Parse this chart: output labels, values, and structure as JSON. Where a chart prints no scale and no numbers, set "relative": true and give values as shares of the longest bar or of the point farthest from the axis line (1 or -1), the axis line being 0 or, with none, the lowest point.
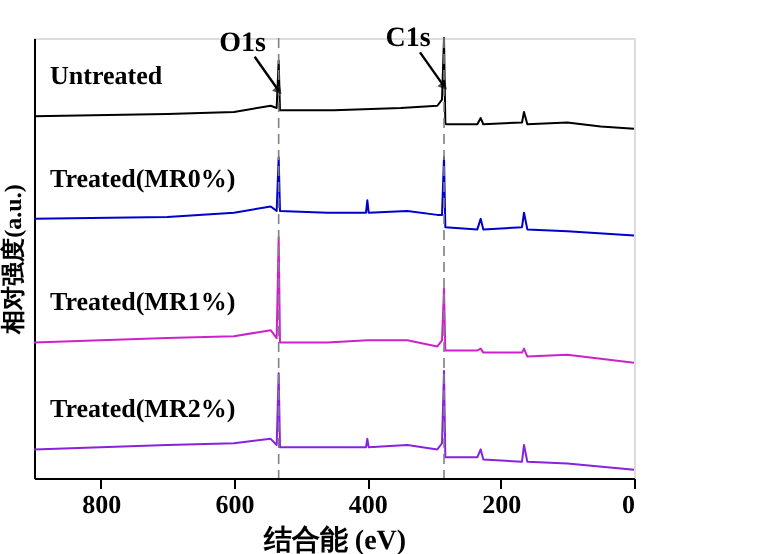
{
  "chart_data": {
    "type": "line",
    "relative": true,
    "xlabel": "结合能 (eV)",
    "ylabel": "相对强度(a.u.)",
    "xlim": [
      900,
      0
    ],
    "xticks": [
      800,
      600,
      400,
      200,
      0
    ],
    "tick_labels": "x",
    "grid": false,
    "legend": false,
    "marker": "none",
    "line_style": "solid",
    "series": [
      {
        "name": "Untreated",
        "color": "#000000",
        "x": [
          900,
          700,
          600,
          545,
          536,
          533,
          531,
          450,
          350,
          295,
          288,
          285,
          283,
          282,
          235,
          230,
          226,
          168,
          165,
          160,
          100,
          50,
          0
        ],
        "values": [
          0.822,
          0.827,
          0.832,
          0.846,
          0.841,
          0.949,
          0.836,
          0.836,
          0.841,
          0.846,
          0.86,
          1.0,
          0.808,
          0.804,
          0.804,
          0.818,
          0.804,
          0.808,
          0.832,
          0.804,
          0.808,
          0.799,
          0.794
        ]
      },
      {
        "name": "Treated(MR0%)",
        "color": "#0000cc",
        "x": [
          900,
          700,
          600,
          545,
          536,
          533,
          531,
          460,
          402,
          400,
          398,
          340,
          295,
          288,
          285,
          283,
          235,
          230,
          226,
          168,
          165,
          160,
          100,
          0
        ],
        "values": [
          0.589,
          0.593,
          0.603,
          0.617,
          0.607,
          0.729,
          0.607,
          0.603,
          0.603,
          0.631,
          0.603,
          0.607,
          0.598,
          0.598,
          0.729,
          0.57,
          0.565,
          0.589,
          0.565,
          0.57,
          0.603,
          0.565,
          0.561,
          0.551
        ]
      },
      {
        "name": "Treated(MR1%)",
        "color": "#cc22cc",
        "x": [
          900,
          700,
          600,
          545,
          536,
          533,
          531,
          460,
          400,
          340,
          295,
          288,
          285,
          283,
          235,
          230,
          226,
          168,
          165,
          160,
          100,
          0
        ],
        "values": [
          0.308,
          0.318,
          0.322,
          0.336,
          0.318,
          0.547,
          0.308,
          0.308,
          0.313,
          0.313,
          0.299,
          0.313,
          0.43,
          0.29,
          0.29,
          0.294,
          0.285,
          0.285,
          0.294,
          0.276,
          0.28,
          0.262
        ]
      },
      {
        "name": "Treated(MR2%)",
        "color": "#8822dd",
        "x": [
          900,
          700,
          600,
          545,
          536,
          533,
          531,
          460,
          402,
          400,
          398,
          340,
          295,
          288,
          285,
          283,
          235,
          230,
          226,
          168,
          165,
          160,
          100,
          0
        ],
        "values": [
          0.065,
          0.075,
          0.079,
          0.089,
          0.075,
          0.238,
          0.07,
          0.07,
          0.07,
          0.089,
          0.07,
          0.075,
          0.065,
          0.079,
          0.243,
          0.047,
          0.047,
          0.065,
          0.042,
          0.037,
          0.075,
          0.037,
          0.033,
          0.019
        ]
      }
    ],
    "ref_lines": [
      {
        "axis": "x",
        "value": 533,
        "color": "#808080",
        "line_style": "dashed"
      },
      {
        "axis": "x",
        "value": 285,
        "color": "#808080",
        "line_style": "dashed"
      }
    ],
    "annotations": [
      {
        "text": "O1s",
        "x": 533,
        "y": 0.88
      },
      {
        "text": "C1s",
        "x": 285,
        "y": 0.89
      }
    ]
  }
}
